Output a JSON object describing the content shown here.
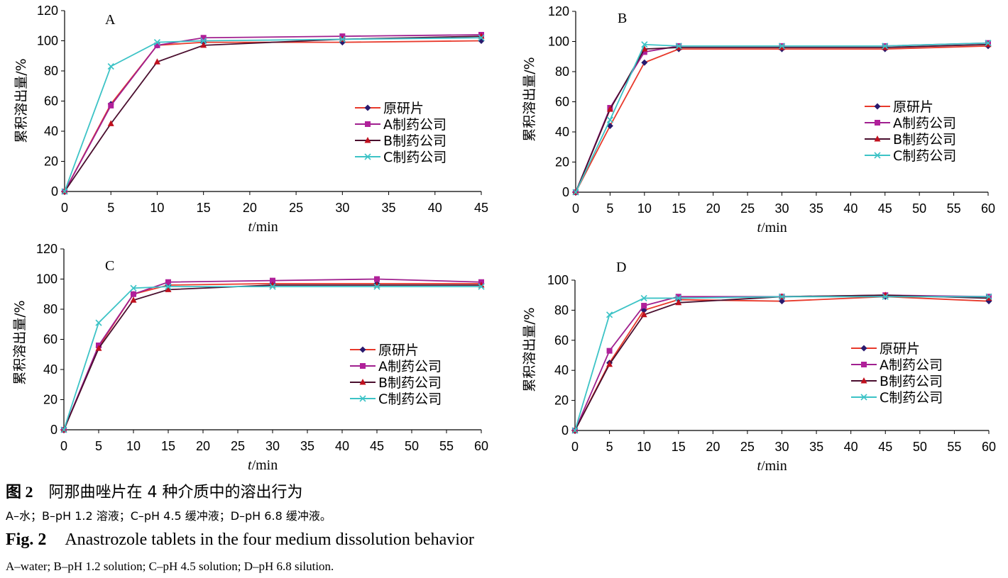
{
  "series_styles": [
    {
      "name": "原研片",
      "line": "#e8392b",
      "marker": "diamond",
      "marker_color": "#2a1a6e"
    },
    {
      "name": "A制药公司",
      "line": "#a0208f",
      "marker": "square",
      "marker_color": "#b0209a"
    },
    {
      "name": "B制药公司",
      "line": "#4a0e2e",
      "marker": "triangle",
      "marker_color": "#c0101e"
    },
    {
      "name": "C制药公司",
      "line": "#3cc3c6",
      "marker": "x",
      "marker_color": "#3cc3c6"
    }
  ],
  "chart_data": [
    {
      "type": "line",
      "panel_label": "A",
      "xlabel_italic": "t",
      "xlabel_unit": "/min",
      "ylabel": "累积溶出量/%",
      "xlim": [
        0,
        45
      ],
      "xticks": [
        0,
        5,
        10,
        15,
        20,
        25,
        30,
        35,
        40,
        45
      ],
      "ylim": [
        0,
        120
      ],
      "yticks": [
        0,
        20,
        40,
        60,
        80,
        100,
        120
      ],
      "legend_position": "center-right",
      "series": [
        {
          "name": "原研片",
          "x": [
            0,
            5,
            10,
            15,
            30,
            45
          ],
          "values": [
            0,
            58,
            97,
            99,
            99,
            100
          ]
        },
        {
          "name": "A制药公司",
          "x": [
            0,
            5,
            10,
            15,
            30,
            45
          ],
          "values": [
            0,
            57,
            97,
            102,
            103,
            104
          ]
        },
        {
          "name": "B制药公司",
          "x": [
            0,
            5,
            10,
            15,
            30,
            45
          ],
          "values": [
            0,
            45,
            86,
            97,
            101,
            103
          ]
        },
        {
          "name": "C制药公司",
          "x": [
            0,
            5,
            10,
            15,
            30,
            45
          ],
          "values": [
            0,
            83,
            99,
            100,
            101,
            102
          ]
        }
      ]
    },
    {
      "type": "line",
      "panel_label": "B",
      "xlabel_italic": "t",
      "xlabel_unit": "/min",
      "ylabel": "累积溶出量/%",
      "xlim": [
        0,
        60
      ],
      "xticks": [
        0,
        5,
        10,
        15,
        20,
        25,
        30,
        35,
        40,
        45,
        50,
        55,
        60
      ],
      "ylim": [
        0,
        120
      ],
      "yticks": [
        0,
        20,
        40,
        60,
        80,
        100,
        120
      ],
      "legend_position": "center-right",
      "series": [
        {
          "name": "原研片",
          "x": [
            0,
            5,
            10,
            15,
            30,
            45,
            60
          ],
          "values": [
            0,
            44,
            86,
            95,
            95,
            95,
            97
          ]
        },
        {
          "name": "A制药公司",
          "x": [
            0,
            5,
            10,
            15,
            30,
            45,
            60
          ],
          "values": [
            0,
            56,
            93,
            97,
            97,
            97,
            99
          ]
        },
        {
          "name": "B制药公司",
          "x": [
            0,
            5,
            10,
            15,
            30,
            45,
            60
          ],
          "values": [
            0,
            55,
            95,
            96,
            96,
            96,
            98
          ]
        },
        {
          "name": "C制药公司",
          "x": [
            0,
            5,
            10,
            15,
            30,
            45,
            60
          ],
          "values": [
            0,
            48,
            98,
            97,
            97,
            97,
            99
          ]
        }
      ]
    },
    {
      "type": "line",
      "panel_label": "C",
      "xlabel_italic": "t",
      "xlabel_unit": "/min",
      "ylabel": "累积溶出量/%",
      "xlim": [
        0,
        60
      ],
      "xticks": [
        0,
        5,
        10,
        15,
        20,
        25,
        30,
        35,
        40,
        45,
        50,
        55,
        60
      ],
      "ylim": [
        0,
        120
      ],
      "yticks": [
        0,
        20,
        40,
        60,
        80,
        100,
        120
      ],
      "legend_position": "bottom-right",
      "series": [
        {
          "name": "原研片",
          "x": [
            0,
            5,
            10,
            15,
            30,
            45,
            60
          ],
          "values": [
            0,
            55,
            90,
            96,
            97,
            97,
            97
          ]
        },
        {
          "name": "A制药公司",
          "x": [
            0,
            5,
            10,
            15,
            30,
            45,
            60
          ],
          "values": [
            0,
            56,
            90,
            98,
            99,
            100,
            98
          ]
        },
        {
          "name": "B制药公司",
          "x": [
            0,
            5,
            10,
            15,
            30,
            45,
            60
          ],
          "values": [
            0,
            54,
            86,
            93,
            96,
            96,
            96
          ]
        },
        {
          "name": "C制药公司",
          "x": [
            0,
            5,
            10,
            15,
            30,
            45,
            60
          ],
          "values": [
            0,
            71,
            94,
            95,
            95,
            95,
            95
          ]
        }
      ]
    },
    {
      "type": "line",
      "panel_label": "D",
      "xlabel_italic": "t",
      "xlabel_unit": "/min",
      "ylabel": "累积溶出量/%",
      "xlim": [
        0,
        60
      ],
      "xticks": [
        0,
        5,
        10,
        15,
        20,
        25,
        30,
        35,
        40,
        45,
        50,
        55,
        60
      ],
      "ylim": [
        0,
        100
      ],
      "yticks": [
        0,
        20,
        40,
        60,
        80,
        100
      ],
      "legend_position": "bottom-right",
      "series": [
        {
          "name": "原研片",
          "x": [
            0,
            5,
            10,
            15,
            30,
            45,
            60
          ],
          "values": [
            0,
            45,
            80,
            87,
            86,
            89,
            86
          ]
        },
        {
          "name": "A制药公司",
          "x": [
            0,
            5,
            10,
            15,
            30,
            45,
            60
          ],
          "values": [
            0,
            53,
            83,
            89,
            89,
            90,
            89
          ]
        },
        {
          "name": "B制药公司",
          "x": [
            0,
            5,
            10,
            15,
            30,
            45,
            60
          ],
          "values": [
            0,
            44,
            77,
            85,
            89,
            90,
            88
          ]
        },
        {
          "name": "C制药公司",
          "x": [
            0,
            5,
            10,
            15,
            30,
            45,
            60
          ],
          "values": [
            0,
            77,
            88,
            88,
            89,
            89,
            89
          ]
        }
      ]
    }
  ],
  "caption": {
    "cn_label": "图 2",
    "cn_title": "阿那曲唑片在 4 种介质中的溶出行为",
    "cn_note": "A–水；B–pH 1.2 溶液；C–pH 4.5 缓冲液；D–pH 6.8 缓冲液。",
    "en_label": "Fig. 2",
    "en_title": "Anastrozole tablets in the four medium dissolution behavior",
    "en_note": "A–water; B–pH 1.2 solution; C–pH 4.5 solution; D–pH 6.8 silution."
  }
}
